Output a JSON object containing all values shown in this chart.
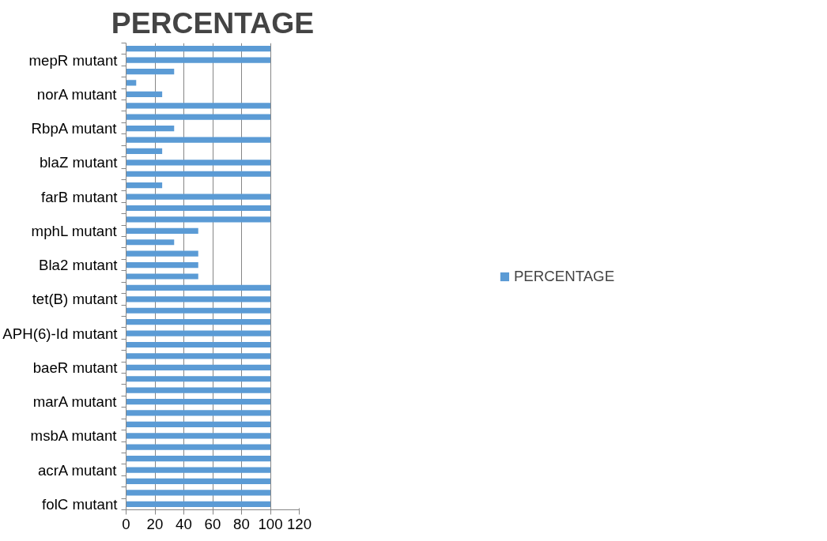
{
  "chart_data": {
    "type": "bar",
    "orientation": "horizontal",
    "title": "PERCENTAGE",
    "categories": [
      null,
      "mepR mutant",
      null,
      null,
      "norA mutant",
      null,
      null,
      "RbpA mutant",
      null,
      null,
      "blaZ mutant",
      null,
      null,
      "farB mutant",
      null,
      null,
      "mphL mutant",
      null,
      null,
      "Bla2 mutant",
      null,
      null,
      "tet(B) mutant",
      null,
      null,
      "APH(6)-Id mutant",
      null,
      null,
      "baeR mutant",
      null,
      null,
      "marA mutant",
      null,
      null,
      "msbA mutant",
      null,
      null,
      "acrA mutant",
      null,
      null,
      "folC mutant"
    ],
    "series": [
      {
        "name": "PERCENTAGE",
        "color": "#5b9bd5",
        "values": [
          100,
          100,
          33.3,
          7,
          25,
          100,
          100,
          33.3,
          100,
          25,
          100,
          100,
          25,
          100,
          100,
          100,
          50,
          33.3,
          50,
          50,
          50,
          100,
          100,
          100,
          100,
          100,
          100,
          100,
          100,
          100,
          100,
          100,
          100,
          100,
          100,
          100,
          100,
          100,
          100,
          100,
          100
        ]
      }
    ],
    "xlim": [
      0,
      120
    ],
    "xticks": [
      0,
      20,
      40,
      60,
      80,
      100,
      120
    ],
    "grid": "x",
    "legend": "right"
  }
}
